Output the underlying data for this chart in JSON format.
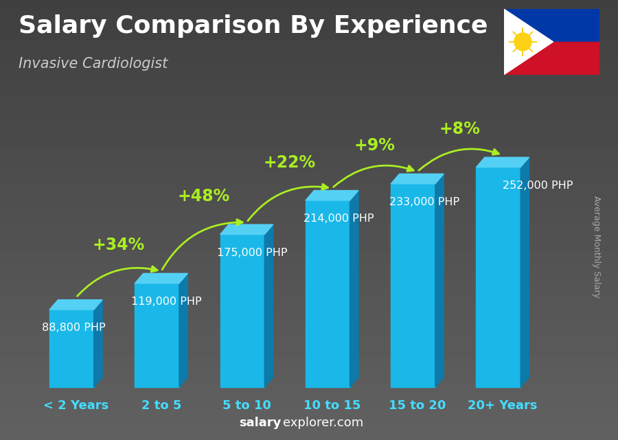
{
  "title": "Salary Comparison By Experience",
  "subtitle": "Invasive Cardiologist",
  "ylabel": "Average Monthly Salary",
  "footer_bold": "salary",
  "footer_normal": "explorer.com",
  "categories": [
    "< 2 Years",
    "2 to 5",
    "5 to 10",
    "10 to 15",
    "15 to 20",
    "20+ Years"
  ],
  "values": [
    88800,
    119000,
    175000,
    214000,
    233000,
    252000
  ],
  "value_labels": [
    "88,800 PHP",
    "119,000 PHP",
    "175,000 PHP",
    "214,000 PHP",
    "233,000 PHP",
    "252,000 PHP"
  ],
  "pct_changes": [
    "+34%",
    "+48%",
    "+22%",
    "+9%",
    "+8%"
  ],
  "bar_face_color": "#1ab8e8",
  "bar_side_color": "#0e7aaa",
  "bar_top_color": "#55d0f5",
  "bg_top_color": "#3a3a3a",
  "bg_bottom_color": "#5a5a5a",
  "title_bg_color": "#2d2d2d",
  "title_color": "#ffffff",
  "subtitle_color": "#cccccc",
  "label_color": "#ffffff",
  "pct_color": "#aaee22",
  "arrow_color": "#aaee22",
  "xticklabel_color": "#44ddff",
  "footer_bold_color": "#ffffff",
  "footer_normal_color": "#ffffff",
  "ylabel_color": "#aaaaaa",
  "title_fontsize": 26,
  "subtitle_fontsize": 15,
  "value_fontsize": 11.5,
  "pct_fontsize": 17,
  "xtick_fontsize": 13,
  "ylabel_fontsize": 9,
  "footer_fontsize": 13
}
